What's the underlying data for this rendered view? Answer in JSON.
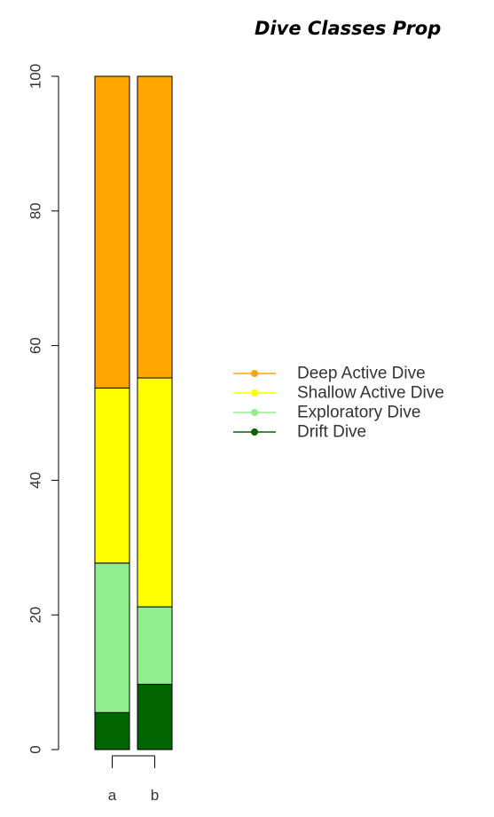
{
  "chart_data": {
    "type": "bar",
    "stacked": true,
    "title": "Dive Classes Prop",
    "categories": [
      "a",
      "b"
    ],
    "series": [
      {
        "name": "Drift Dive",
        "color": "#006400",
        "values": [
          5.5,
          9.7
        ]
      },
      {
        "name": "Exploratory Dive",
        "color": "#90EE90",
        "values": [
          22.2,
          11.5
        ]
      },
      {
        "name": "Shallow Active Dive",
        "color": "#FFFF00",
        "values": [
          26.0,
          34.0
        ]
      },
      {
        "name": "Deep Active Dive",
        "color": "#FFA500",
        "values": [
          46.3,
          44.8
        ]
      }
    ],
    "ylim": [
      0,
      100
    ],
    "yticks": [
      "0",
      "20",
      "40",
      "60",
      "80",
      "100"
    ],
    "xlabel": "",
    "ylabel": "",
    "grid": false,
    "legend": {
      "placement": "right",
      "entries": [
        "Deep Active Dive",
        "Shallow Active Dive",
        "Exploratory Dive",
        "Drift Dive"
      ]
    }
  }
}
